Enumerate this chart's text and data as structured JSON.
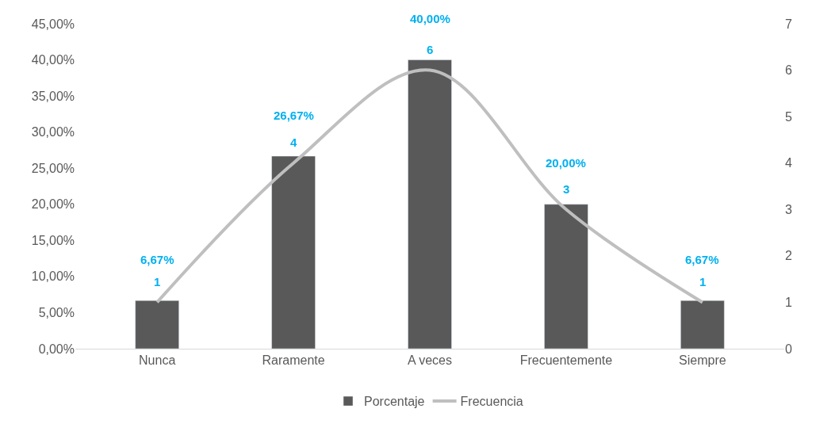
{
  "chart_data": {
    "type": "bar",
    "categories": [
      "Nunca",
      "Raramente",
      "A veces",
      "Frecuentemente",
      "Siempre"
    ],
    "series": [
      {
        "name": "Porcentaje",
        "color": "#595959",
        "values": [
          6.67,
          26.67,
          40.0,
          20.0,
          6.67
        ],
        "value_labels": [
          "6,67%",
          "26,67%",
          "40,00%",
          "20,00%",
          "6,67%"
        ]
      },
      {
        "name": "Frecuencia",
        "type": "line",
        "axis": "y2",
        "color": "#bfbfbf",
        "values": [
          1,
          4,
          6,
          3,
          1
        ],
        "value_labels": [
          "1",
          "4",
          "6",
          "3",
          "1"
        ],
        "marker": "none",
        "line_style": "solid"
      }
    ],
    "ylim": [
      0,
      45
    ],
    "yticks": [
      {
        "value": 0,
        "label": "0,00%"
      },
      {
        "value": 5,
        "label": "5,00%"
      },
      {
        "value": 10,
        "label": "10,00%"
      },
      {
        "value": 15,
        "label": "15,00%"
      },
      {
        "value": 20,
        "label": "20,00%"
      },
      {
        "value": 25,
        "label": "25,00%"
      },
      {
        "value": 30,
        "label": "30,00%"
      },
      {
        "value": 35,
        "label": "35,00%"
      },
      {
        "value": 40,
        "label": "40,00%"
      },
      {
        "value": 45,
        "label": "45,00%"
      }
    ],
    "y2lim": [
      0,
      7
    ],
    "y2ticks": [
      0,
      1,
      2,
      3,
      4,
      5,
      6,
      7
    ],
    "grid": false,
    "legend": "bottom"
  }
}
